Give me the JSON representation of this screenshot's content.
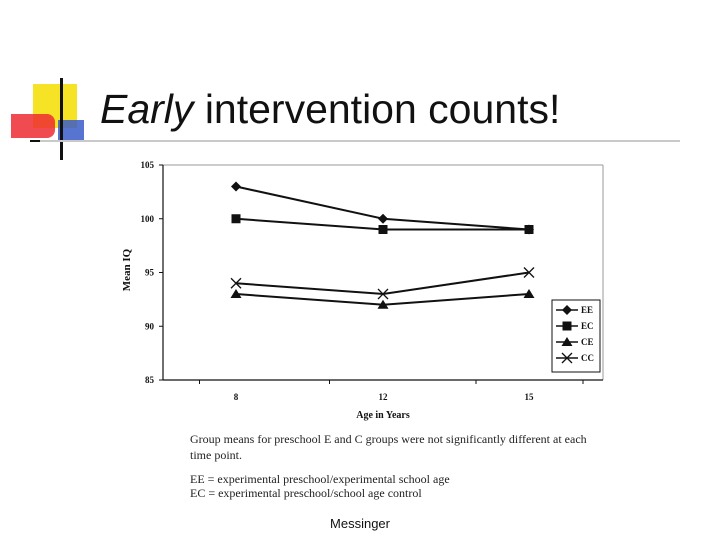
{
  "slide": {
    "title_em": "Early",
    "title_rest": " intervention counts!",
    "footer": "Messinger",
    "captions": [
      "Group means for preschool E and C groups were not significantly different at each",
      "time point.",
      "EE = experimental preschool/experimental school age",
      "EC = experimental preschool/school age control"
    ]
  },
  "colors": {
    "deco_yellow": "#f7e326",
    "deco_red": "#ef2b34",
    "deco_blue": "#3a5cc8",
    "ink": "#111111"
  },
  "chart_data": {
    "type": "line",
    "title": "",
    "xlabel": "Age in Years",
    "ylabel": "Mean IQ",
    "categories": [
      "8",
      "12",
      "15"
    ],
    "ylim": [
      85,
      105
    ],
    "yticks": [
      "85",
      "90",
      "95",
      "100",
      "105"
    ],
    "legend_position": "right",
    "series": [
      {
        "name": "EE",
        "marker": "diamond",
        "values": [
          103,
          100,
          99
        ]
      },
      {
        "name": "EC",
        "marker": "square",
        "values": [
          100,
          99,
          99
        ]
      },
      {
        "name": "CE",
        "marker": "triangle",
        "values": [
          93,
          92,
          93
        ]
      },
      {
        "name": "CC",
        "marker": "x",
        "values": [
          94,
          93,
          95
        ]
      }
    ]
  }
}
